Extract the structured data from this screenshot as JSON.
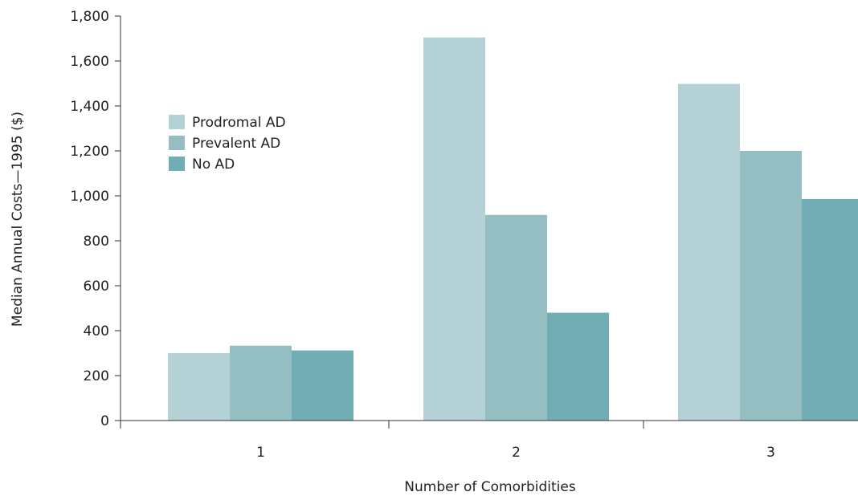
{
  "chart_data": {
    "type": "bar",
    "title": "",
    "xlabel": "Number of Comorbidities",
    "ylabel": "Median Annual Costs—1995 ($)",
    "categories": [
      "1",
      "2",
      "3"
    ],
    "ylim": [
      0,
      1800
    ],
    "yticks": [
      0,
      200,
      400,
      600,
      800,
      1000,
      1200,
      1400,
      1600,
      1800
    ],
    "ytick_labels": [
      "0",
      "200",
      "400",
      "600",
      "800",
      "1,000",
      "1,200",
      "1,400",
      "1,600",
      "1,800"
    ],
    "grid": false,
    "legend_position": "upper-left",
    "series": [
      {
        "name": "Prodromal AD",
        "color": "#b4d2d6",
        "values": [
          300,
          1705,
          1498
        ]
      },
      {
        "name": "Prevalent AD",
        "color": "#95bec3",
        "values": [
          333,
          915,
          1200
        ]
      },
      {
        "name": "No AD",
        "color": "#72adb4",
        "values": [
          312,
          480,
          986
        ]
      }
    ]
  }
}
